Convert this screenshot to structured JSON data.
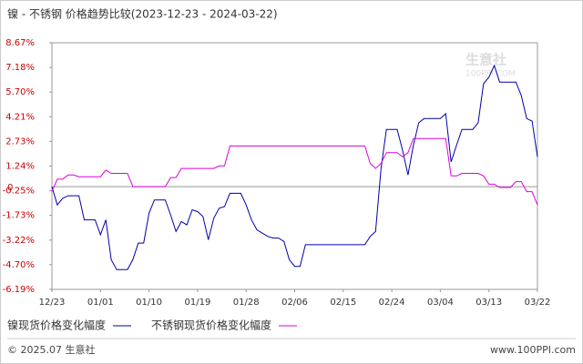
{
  "chart_data": {
    "type": "line",
    "title": "镍 - 不锈钢 价格趋势比较(2023-12-23 - 2024-03-22)",
    "categories": [
      "12/23",
      null,
      null,
      null,
      null,
      null,
      null,
      null,
      null,
      "01/01",
      null,
      null,
      null,
      null,
      null,
      null,
      null,
      null,
      "01/10",
      null,
      null,
      null,
      null,
      null,
      null,
      null,
      null,
      "01/19",
      null,
      null,
      null,
      null,
      null,
      null,
      null,
      null,
      "01/28",
      null,
      null,
      null,
      null,
      null,
      null,
      null,
      null,
      "02/06",
      null,
      null,
      null,
      null,
      null,
      null,
      null,
      null,
      "02/15",
      null,
      null,
      null,
      null,
      null,
      null,
      null,
      null,
      "02/24",
      null,
      null,
      null,
      null,
      null,
      null,
      null,
      null,
      "03/04",
      null,
      null,
      null,
      null,
      null,
      null,
      null,
      null,
      "03/13",
      null,
      null,
      null,
      null,
      null,
      null,
      null,
      null,
      "03/22"
    ],
    "series": [
      {
        "name": "镍现货价格变化幅度",
        "color": "#0000aa",
        "values": [
          0,
          -1.1,
          -0.7,
          -0.55,
          -0.55,
          -0.55,
          -2.0,
          -2.0,
          -2.0,
          -2.9,
          -2.0,
          -4.4,
          -5.0,
          -5.0,
          -5.0,
          -4.4,
          -3.4,
          -3.4,
          -1.6,
          -0.8,
          -0.8,
          -0.8,
          -1.7,
          -2.7,
          -2.1,
          -2.3,
          -1.4,
          -1.5,
          -1.8,
          -3.2,
          -1.9,
          -1.3,
          -1.2,
          -0.4,
          -0.4,
          -0.4,
          -1.1,
          -2.0,
          -2.6,
          -2.8,
          -3.0,
          -3.1,
          -3.1,
          -3.3,
          -4.4,
          -4.8,
          -4.8,
          -3.5,
          -3.5,
          -3.5,
          -3.5,
          -3.5,
          -3.5,
          -3.5,
          -3.5,
          -3.5,
          -3.5,
          -3.5,
          -3.5,
          -3.0,
          -2.7,
          1.1,
          3.45,
          3.45,
          3.45,
          2.2,
          0.7,
          2.5,
          3.85,
          4.1,
          4.1,
          4.1,
          4.1,
          4.4,
          1.5,
          2.5,
          3.45,
          3.45,
          3.45,
          3.85,
          6.2,
          6.6,
          7.3,
          6.3,
          6.3,
          6.3,
          6.3,
          5.5,
          4.1,
          3.95,
          1.8
        ]
      },
      {
        "name": "不锈钢现货价格变化幅度",
        "color": "#dd00dd",
        "values": [
          -0.3,
          0.45,
          0.45,
          0.7,
          0.7,
          0.6,
          0.6,
          0.6,
          0.6,
          0.6,
          1.0,
          0.8,
          0.8,
          0.8,
          0.8,
          0,
          0,
          0,
          0,
          0,
          0,
          0,
          0.55,
          0.55,
          1.1,
          1.1,
          1.1,
          1.1,
          1.1,
          1.1,
          1.1,
          1.25,
          1.25,
          2.45,
          2.45,
          2.45,
          2.45,
          2.45,
          2.45,
          2.45,
          2.45,
          2.45,
          2.45,
          2.45,
          2.45,
          2.45,
          2.45,
          2.45,
          2.45,
          2.45,
          2.45,
          2.45,
          2.45,
          2.45,
          2.45,
          2.45,
          2.45,
          2.45,
          2.45,
          1.4,
          1.1,
          1.4,
          2.05,
          2.05,
          2.05,
          1.8,
          2.05,
          2.9,
          2.9,
          2.9,
          2.9,
          2.9,
          2.9,
          2.9,
          0.65,
          0.65,
          0.8,
          0.8,
          0.8,
          0.8,
          0.65,
          0.15,
          0.15,
          -0.05,
          -0.05,
          -0.05,
          0.3,
          0.3,
          -0.3,
          -0.3,
          -1.1
        ]
      }
    ],
    "ylim": [
      -6.19,
      8.67
    ],
    "yticks": [
      {
        "value": 8.67,
        "label": "8.67%"
      },
      {
        "value": 7.18,
        "label": "7.18%"
      },
      {
        "value": 5.7,
        "label": "5.70%"
      },
      {
        "value": 4.21,
        "label": "4.21%"
      },
      {
        "value": 2.73,
        "label": "2.73%"
      },
      {
        "value": 1.24,
        "label": "1.24%"
      },
      {
        "value": -0.25,
        "label": "-0.25%"
      },
      {
        "value": -1.73,
        "label": "-1.73%"
      },
      {
        "value": -3.22,
        "label": "-3.22%"
      },
      {
        "value": -4.7,
        "label": "-4.70%"
      },
      {
        "value": -6.19,
        "label": "-6.19%"
      }
    ],
    "zero_line": 0,
    "grid": false,
    "watermark": {
      "brand": "生意社",
      "site": "100PPI.COM"
    },
    "footer": {
      "left": "© 2025.07 生意社",
      "right": "www.100PPI.com"
    }
  }
}
